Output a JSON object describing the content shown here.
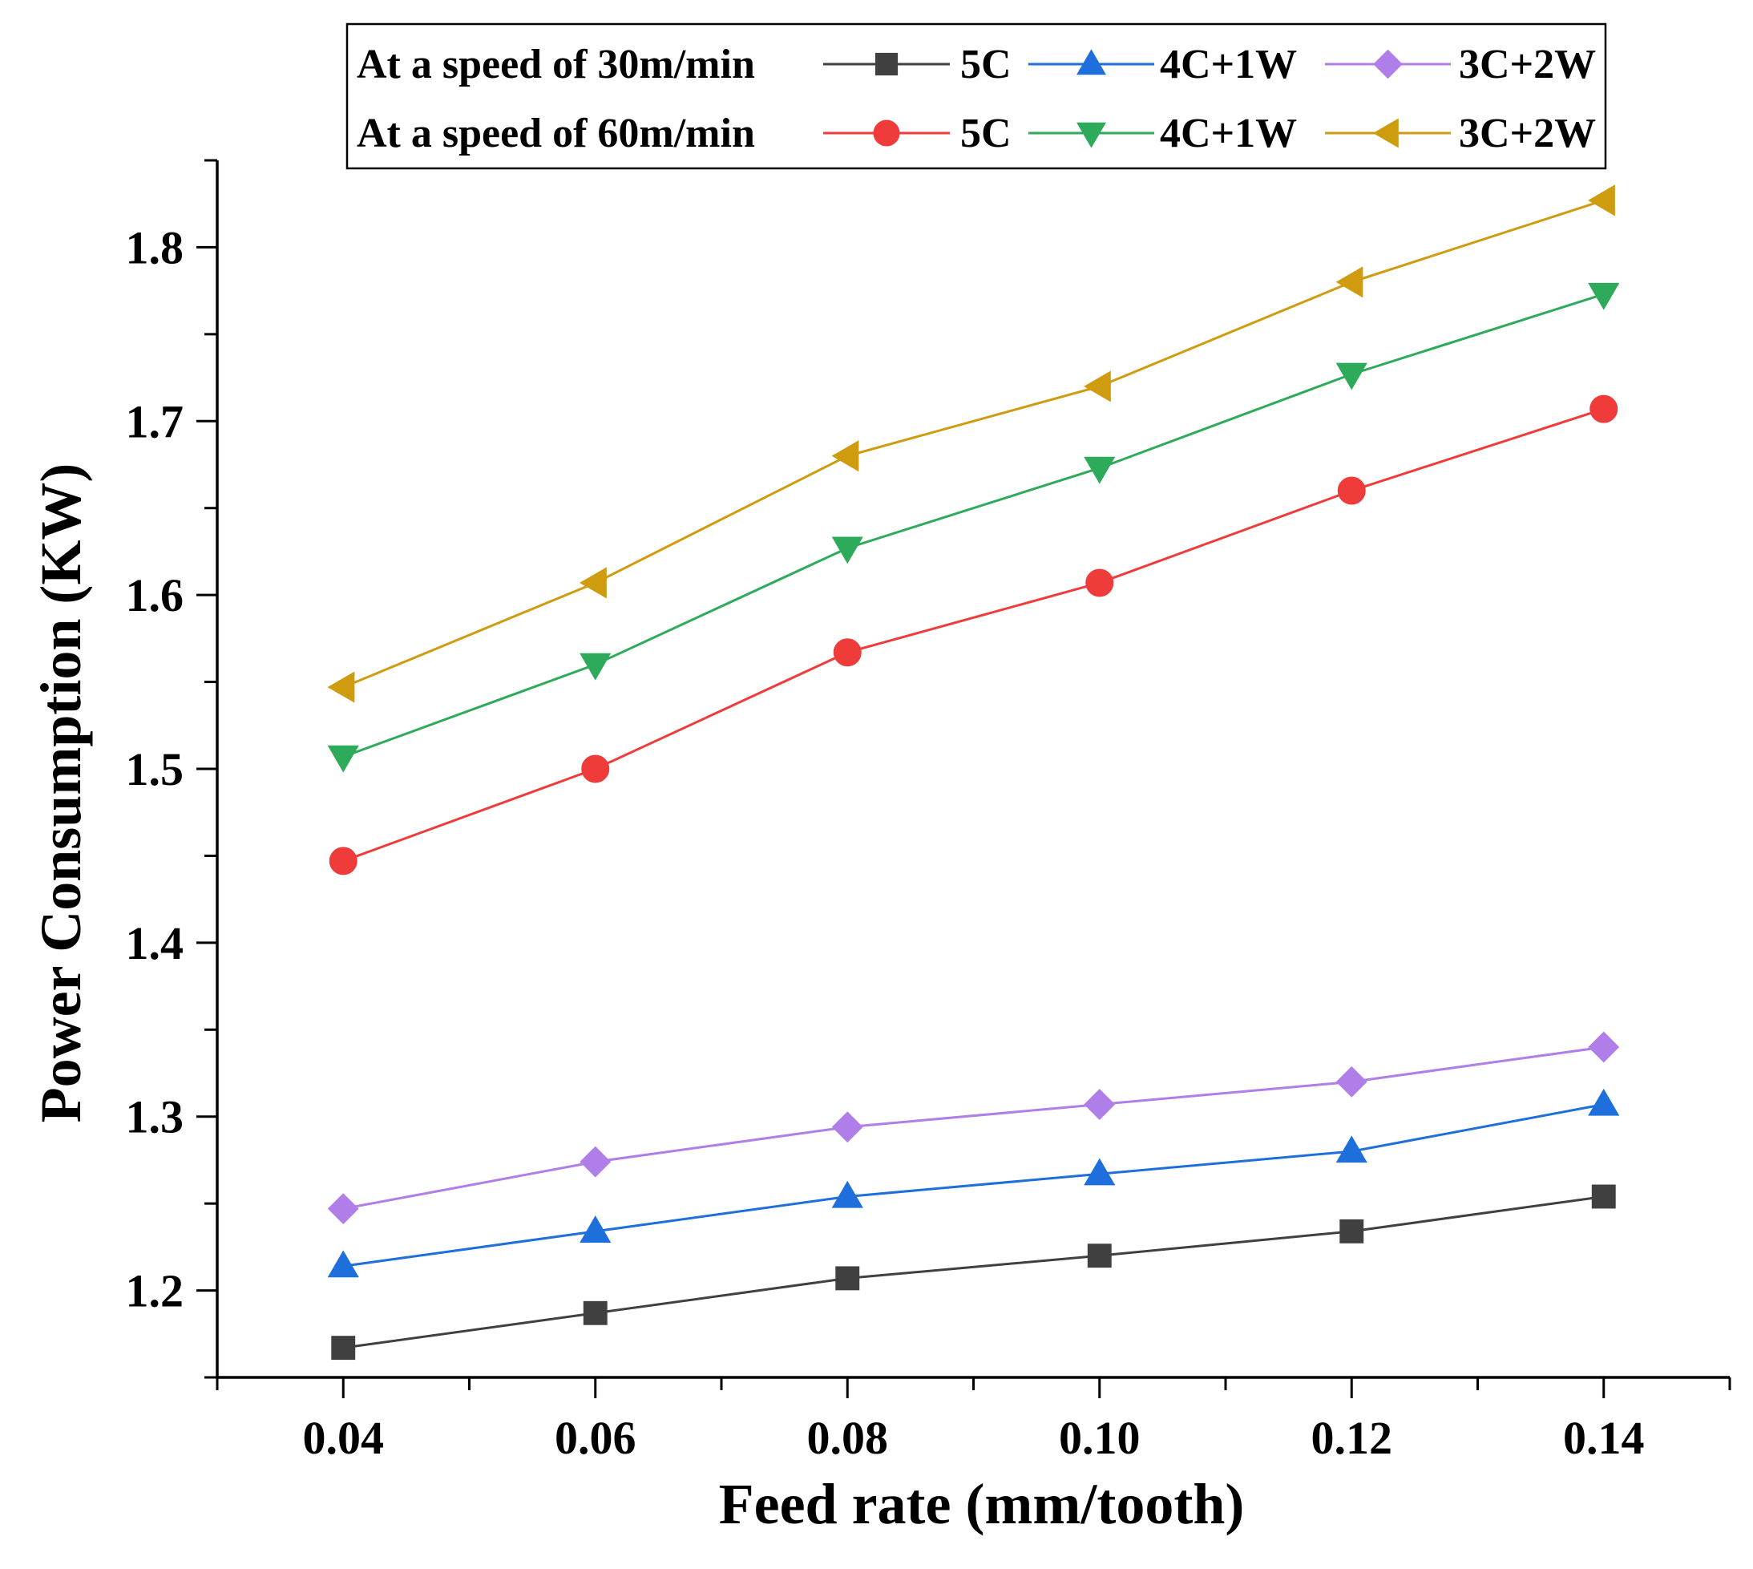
{
  "chart_data": {
    "type": "line",
    "title": "",
    "xlabel": "Feed rate (mm/tooth)",
    "ylabel": "Power Consumption (KW)",
    "xlim": [
      0.03,
      0.15
    ],
    "ylim": [
      1.15,
      1.85
    ],
    "x_ticks": [
      0.04,
      0.06,
      0.08,
      0.1,
      0.12,
      0.14
    ],
    "x_tick_labels": [
      "0.04",
      "0.06",
      "0.08",
      "0.10",
      "0.12",
      "0.14"
    ],
    "y_ticks": [
      1.2,
      1.3,
      1.4,
      1.5,
      1.6,
      1.7,
      1.8
    ],
    "y_tick_labels": [
      "1.2",
      "1.3",
      "1.4",
      "1.5",
      "1.6",
      "1.7",
      "1.8"
    ],
    "grid": false,
    "legend_position": "top",
    "legend_groups": [
      {
        "label": "At a speed of 30m/min",
        "series": [
          0,
          1,
          2
        ]
      },
      {
        "label": "At a speed of 60m/min",
        "series": [
          3,
          4,
          5
        ]
      }
    ],
    "x": [
      0.04,
      0.06,
      0.08,
      0.1,
      0.12,
      0.14
    ],
    "series": [
      {
        "name": "5C",
        "group": "At a speed of 30m/min",
        "color": "#404040",
        "marker": "square",
        "values": [
          1.167,
          1.187,
          1.207,
          1.22,
          1.234,
          1.254
        ]
      },
      {
        "name": "4C+1W",
        "group": "At a speed of 30m/min",
        "color": "#1e6fdc",
        "marker": "triangle-up",
        "values": [
          1.214,
          1.234,
          1.254,
          1.267,
          1.28,
          1.307
        ]
      },
      {
        "name": "3C+2W",
        "group": "At a speed of 30m/min",
        "color": "#b07ee8",
        "marker": "diamond",
        "values": [
          1.247,
          1.274,
          1.294,
          1.307,
          1.32,
          1.34
        ]
      },
      {
        "name": "5C",
        "group": "At a speed of 60m/min",
        "color": "#f03b3b",
        "marker": "circle",
        "values": [
          1.447,
          1.5,
          1.567,
          1.607,
          1.66,
          1.707
        ]
      },
      {
        "name": "4C+1W",
        "group": "At a speed of 60m/min",
        "color": "#2daa5a",
        "marker": "triangle-down",
        "values": [
          1.507,
          1.56,
          1.627,
          1.673,
          1.727,
          1.773
        ]
      },
      {
        "name": "3C+2W",
        "group": "At a speed of 60m/min",
        "color": "#cf9c10",
        "marker": "triangle-left",
        "values": [
          1.547,
          1.607,
          1.68,
          1.72,
          1.78,
          1.827
        ]
      }
    ]
  }
}
